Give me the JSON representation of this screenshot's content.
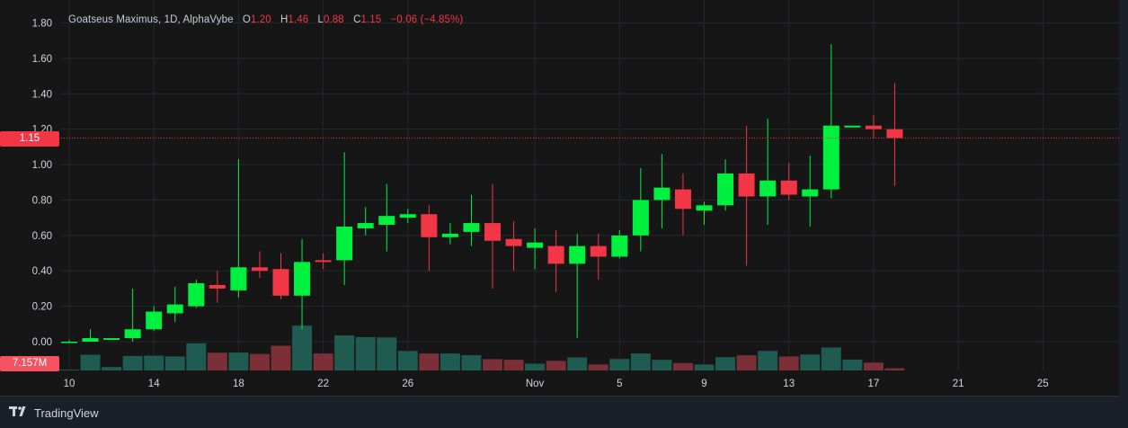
{
  "legend": {
    "symbol": "Goatseus Maximus, 1D, AlphaVybe",
    "open_label": "O",
    "open": "1.20",
    "high_label": "H",
    "high": "1.46",
    "low_label": "L",
    "low": "0.88",
    "close_label": "C",
    "close": "1.15",
    "change": "−0.06 (−4.85%)"
  },
  "price_badge": "1.15",
  "volume_badge": "7.157M",
  "branding": "TradingView",
  "colors": {
    "up": "#00f040",
    "down": "#f23645",
    "volume_up": "#1f5b50",
    "volume_down": "#7a3036",
    "background": "#161616",
    "grid": "#24272e"
  },
  "chart_data": {
    "type": "candlestick",
    "title": "Goatseus Maximus, 1D, AlphaVybe",
    "xlabel": "",
    "ylabel": "",
    "ylim": [
      -0.1,
      1.87
    ],
    "grid": true,
    "y_ticks": [
      "1.80",
      "1.60",
      "1.40",
      "1.20",
      "1.00",
      "0.80",
      "0.60",
      "0.40",
      "0.20",
      "0.00"
    ],
    "x_ticks": [
      {
        "label": "10",
        "date": "2024-10-10"
      },
      {
        "label": "14",
        "date": "2024-10-14"
      },
      {
        "label": "18",
        "date": "2024-10-18"
      },
      {
        "label": "22",
        "date": "2024-10-22"
      },
      {
        "label": "26",
        "date": "2024-10-26"
      },
      {
        "label": "Nov",
        "date": "2024-11-01"
      },
      {
        "label": "5",
        "date": "2024-11-05"
      },
      {
        "label": "9",
        "date": "2024-11-09"
      },
      {
        "label": "13",
        "date": "2024-11-13"
      },
      {
        "label": "17",
        "date": "2024-11-17"
      },
      {
        "label": "21",
        "date": "2024-11-21"
      },
      {
        "label": "25",
        "date": "2024-11-25"
      }
    ],
    "last_price": 1.15,
    "candles": [
      {
        "date": "2024-10-10",
        "open": 0.0,
        "high": 0.01,
        "low": 0.0,
        "close": 0.0
      },
      {
        "date": "2024-10-11",
        "open": 0.0,
        "high": 0.07,
        "low": 0.0,
        "close": 0.02
      },
      {
        "date": "2024-10-12",
        "open": 0.01,
        "high": 0.02,
        "low": 0.01,
        "close": 0.02
      },
      {
        "date": "2024-10-13",
        "open": 0.02,
        "high": 0.3,
        "low": 0.0,
        "close": 0.07
      },
      {
        "date": "2024-10-14",
        "open": 0.07,
        "high": 0.2,
        "low": 0.06,
        "close": 0.17
      },
      {
        "date": "2024-10-15",
        "open": 0.16,
        "high": 0.31,
        "low": 0.11,
        "close": 0.21
      },
      {
        "date": "2024-10-16",
        "open": 0.2,
        "high": 0.35,
        "low": 0.19,
        "close": 0.33
      },
      {
        "date": "2024-10-17",
        "open": 0.32,
        "high": 0.4,
        "low": 0.22,
        "close": 0.3
      },
      {
        "date": "2024-10-18",
        "open": 0.29,
        "high": 1.03,
        "low": 0.25,
        "close": 0.42
      },
      {
        "date": "2024-10-19",
        "open": 0.42,
        "high": 0.51,
        "low": 0.36,
        "close": 0.4
      },
      {
        "date": "2024-10-20",
        "open": 0.41,
        "high": 0.5,
        "low": 0.24,
        "close": 0.26
      },
      {
        "date": "2024-10-21",
        "open": 0.26,
        "high": 0.58,
        "low": 0.07,
        "close": 0.45
      },
      {
        "date": "2024-10-22",
        "open": 0.46,
        "high": 0.5,
        "low": 0.41,
        "close": 0.45
      },
      {
        "date": "2024-10-23",
        "open": 0.46,
        "high": 1.07,
        "low": 0.32,
        "close": 0.65
      },
      {
        "date": "2024-10-24",
        "open": 0.64,
        "high": 0.76,
        "low": 0.6,
        "close": 0.67
      },
      {
        "date": "2024-10-25",
        "open": 0.66,
        "high": 0.89,
        "low": 0.51,
        "close": 0.71
      },
      {
        "date": "2024-10-26",
        "open": 0.7,
        "high": 0.75,
        "low": 0.67,
        "close": 0.72
      },
      {
        "date": "2024-10-27",
        "open": 0.72,
        "high": 0.77,
        "low": 0.4,
        "close": 0.59
      },
      {
        "date": "2024-10-28",
        "open": 0.59,
        "high": 0.67,
        "low": 0.55,
        "close": 0.61
      },
      {
        "date": "2024-10-29",
        "open": 0.62,
        "high": 0.83,
        "low": 0.54,
        "close": 0.67
      },
      {
        "date": "2024-10-30",
        "open": 0.67,
        "high": 0.89,
        "low": 0.3,
        "close": 0.57
      },
      {
        "date": "2024-10-31",
        "open": 0.58,
        "high": 0.68,
        "low": 0.4,
        "close": 0.54
      },
      {
        "date": "2024-11-01",
        "open": 0.53,
        "high": 0.64,
        "low": 0.41,
        "close": 0.56
      },
      {
        "date": "2024-11-02",
        "open": 0.54,
        "high": 0.63,
        "low": 0.28,
        "close": 0.44
      },
      {
        "date": "2024-11-03",
        "open": 0.44,
        "high": 0.61,
        "low": 0.02,
        "close": 0.54
      },
      {
        "date": "2024-11-04",
        "open": 0.54,
        "high": 0.61,
        "low": 0.35,
        "close": 0.48
      },
      {
        "date": "2024-11-05",
        "open": 0.48,
        "high": 0.63,
        "low": 0.47,
        "close": 0.6
      },
      {
        "date": "2024-11-06",
        "open": 0.6,
        "high": 0.98,
        "low": 0.51,
        "close": 0.8
      },
      {
        "date": "2024-11-07",
        "open": 0.8,
        "high": 1.06,
        "low": 0.64,
        "close": 0.87
      },
      {
        "date": "2024-11-08",
        "open": 0.86,
        "high": 0.95,
        "low": 0.6,
        "close": 0.75
      },
      {
        "date": "2024-11-09",
        "open": 0.74,
        "high": 0.79,
        "low": 0.66,
        "close": 0.77
      },
      {
        "date": "2024-11-10",
        "open": 0.77,
        "high": 1.03,
        "low": 0.74,
        "close": 0.95
      },
      {
        "date": "2024-11-11",
        "open": 0.95,
        "high": 1.22,
        "low": 0.43,
        "close": 0.82
      },
      {
        "date": "2024-11-12",
        "open": 0.82,
        "high": 1.26,
        "low": 0.66,
        "close": 0.91
      },
      {
        "date": "2024-11-13",
        "open": 0.91,
        "high": 1.01,
        "low": 0.8,
        "close": 0.83
      },
      {
        "date": "2024-11-14",
        "open": 0.82,
        "high": 1.05,
        "low": 0.65,
        "close": 0.86
      },
      {
        "date": "2024-11-15",
        "open": 0.86,
        "high": 1.68,
        "low": 0.81,
        "close": 1.22
      },
      {
        "date": "2024-11-16",
        "open": 1.21,
        "high": 1.22,
        "low": 1.21,
        "close": 1.22
      },
      {
        "date": "2024-11-17",
        "open": 1.22,
        "high": 1.28,
        "low": 1.15,
        "close": 1.2
      },
      {
        "date": "2024-11-18",
        "open": 1.2,
        "high": 1.46,
        "low": 0.88,
        "close": 1.15
      }
    ],
    "volume_axis_label": "7.157M",
    "volume_relative": [
      0.05,
      1.0,
      0.22,
      0.92,
      0.94,
      0.89,
      1.73,
      1.13,
      1.14,
      1.05,
      1.57,
      2.85,
      1.08,
      2.23,
      2.12,
      2.1,
      1.24,
      1.08,
      1.08,
      0.97,
      0.72,
      0.68,
      0.43,
      0.61,
      0.83,
      0.38,
      0.73,
      1.08,
      0.68,
      0.47,
      0.38,
      0.85,
      0.96,
      1.24,
      0.89,
      1.01,
      1.46,
      0.69,
      0.5,
      0.14
    ]
  }
}
